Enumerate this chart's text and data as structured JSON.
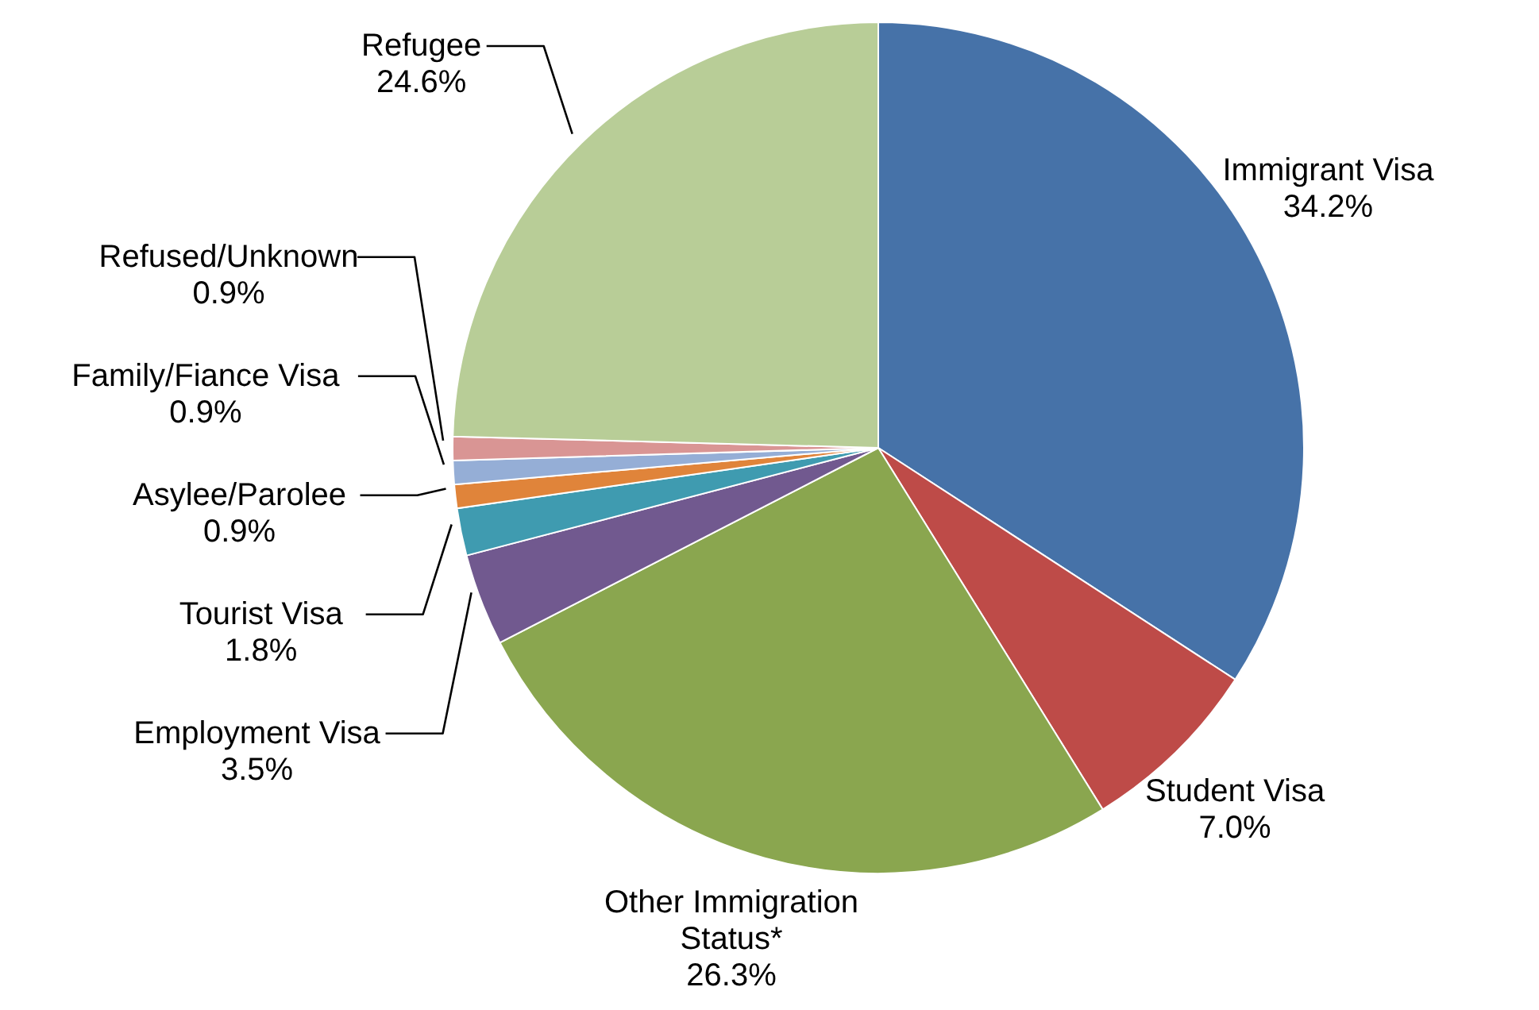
{
  "chart_data": {
    "type": "pie",
    "categories": [
      "Immigrant Visa",
      "Student Visa",
      "Other Immigration Status*",
      "Employment Visa",
      "Tourist Visa",
      "Asylee/Parolee",
      "Family/Fiance Visa",
      "Refused/Unknown",
      "Refugee"
    ],
    "values": [
      34.2,
      7.0,
      26.3,
      3.5,
      1.8,
      0.9,
      0.9,
      0.9,
      24.6
    ],
    "colors": [
      "#4672a8",
      "#be4b48",
      "#8aa64f",
      "#71598f",
      "#3f9bb0",
      "#e0843a",
      "#95aed6",
      "#d99594",
      "#b8cd97"
    ],
    "value_labels": [
      "34.2%",
      "7.0%",
      "26.3%",
      "3.5%",
      "1.8%",
      "0.9%",
      "0.9%",
      "0.9%",
      "24.6%"
    ]
  }
}
